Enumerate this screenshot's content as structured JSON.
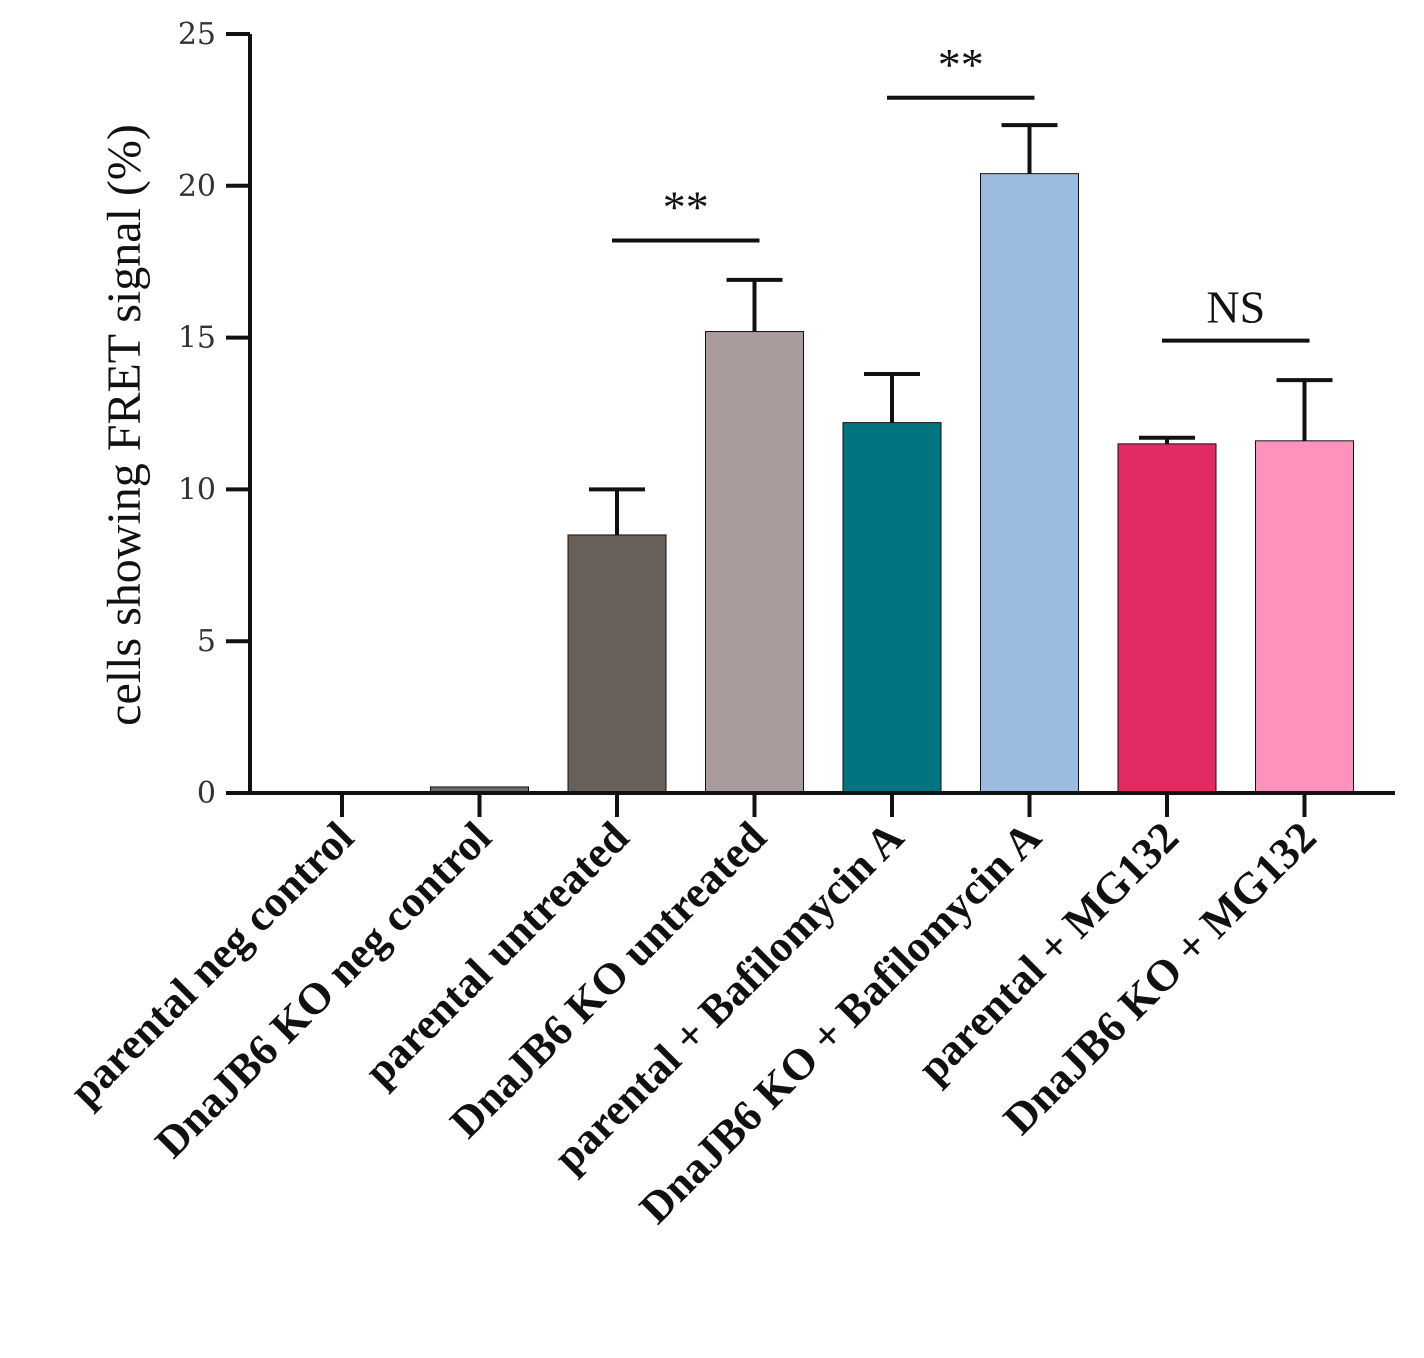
{
  "chart_data": {
    "type": "bar",
    "title": "",
    "xlabel": "",
    "ylabel": "cells showing FRET signal (%)",
    "ylim": [
      0,
      25
    ],
    "yticks": [
      0,
      5,
      10,
      15,
      20,
      25
    ],
    "grid": false,
    "categories": [
      "parental neg control",
      "DnaJB6 KO neg control",
      "parental untreated",
      "DnaJB6 KO untreated",
      "parental + Bafilomycin A",
      "DnaJB6 KO + Bafilomycin A",
      "parental + MG132",
      "DnaJB6 KO + MG132"
    ],
    "values": [
      0,
      0.2,
      8.5,
      15.2,
      12.2,
      20.4,
      11.5,
      11.6
    ],
    "errors": [
      0,
      0,
      1.5,
      1.7,
      1.6,
      1.6,
      0.2,
      2.0
    ],
    "colors": [
      "#6b6b6b",
      "#6b6b6b",
      "#686059",
      "#a99b9b",
      "#007580",
      "#9cbbe0",
      "#e22b63",
      "#fd92bd"
    ],
    "significance": [
      {
        "from": 2,
        "to": 3,
        "label": "**",
        "y": 18.2
      },
      {
        "from": 4,
        "to": 5,
        "label": "**",
        "y": 22.9
      },
      {
        "from": 6,
        "to": 7,
        "label": "NS",
        "y": 14.9
      }
    ]
  }
}
